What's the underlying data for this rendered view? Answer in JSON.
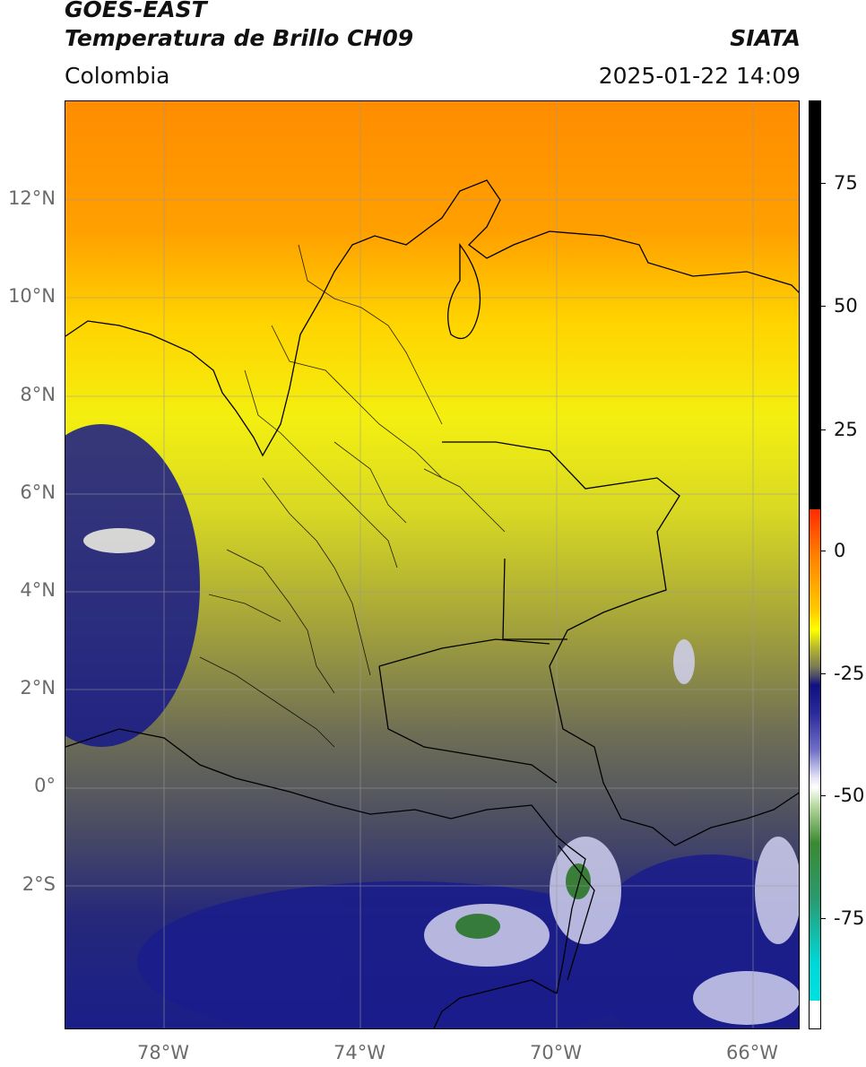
{
  "header": {
    "line1": "GOES-EAST",
    "line2": "Temperatura de Brillo CH09",
    "org": "SIATA",
    "region": "Colombia",
    "datetime": "2025-01-22 14:09"
  },
  "axes": {
    "lat_labels": [
      "12°N",
      "10°N",
      "8°N",
      "6°N",
      "4°N",
      "2°N",
      "0°",
      "2°S"
    ],
    "lon_labels": [
      "78°W",
      "74°W",
      "70°W",
      "66°W"
    ]
  },
  "colorbar": {
    "ticks": [
      "75",
      "50",
      "25",
      "0",
      "-25",
      "-50",
      "-75"
    ]
  }
}
